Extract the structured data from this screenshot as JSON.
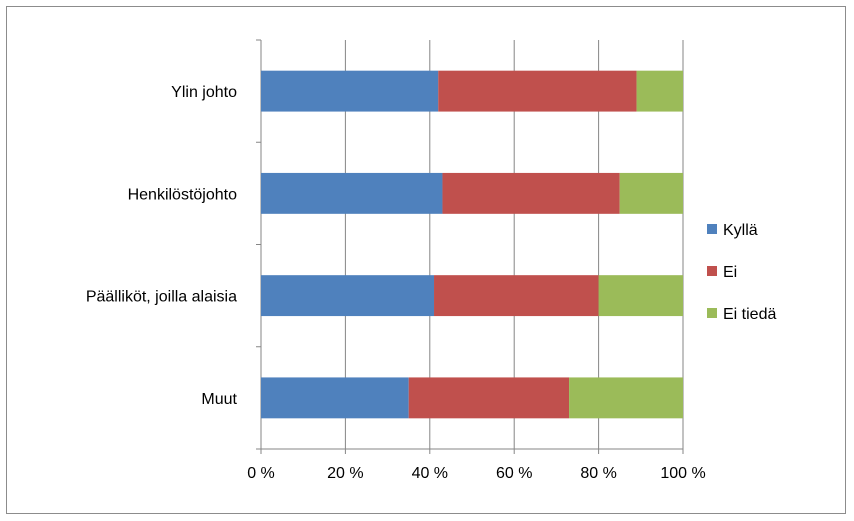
{
  "chart_data": {
    "type": "bar",
    "orientation": "horizontal",
    "stacked": "percent",
    "categories": [
      "Ylin johto",
      "Henkilöstöjohto",
      "Päälliköt, joilla alaisia",
      "Muut"
    ],
    "series": [
      {
        "name": "Kyllä",
        "color": "#4f81bd",
        "values": [
          42,
          43,
          41,
          35
        ]
      },
      {
        "name": "Ei",
        "color": "#c0504d",
        "values": [
          47,
          42,
          39,
          38
        ]
      },
      {
        "name": "Ei tiedä",
        "color": "#9bbb59",
        "values": [
          11,
          15,
          20,
          27
        ]
      }
    ],
    "xlim": [
      0,
      100
    ],
    "xticks": [
      "0 %",
      "20 %",
      "40 %",
      "60 %",
      "80 %",
      "100 %"
    ],
    "grid": "vertical",
    "legend": "right"
  }
}
